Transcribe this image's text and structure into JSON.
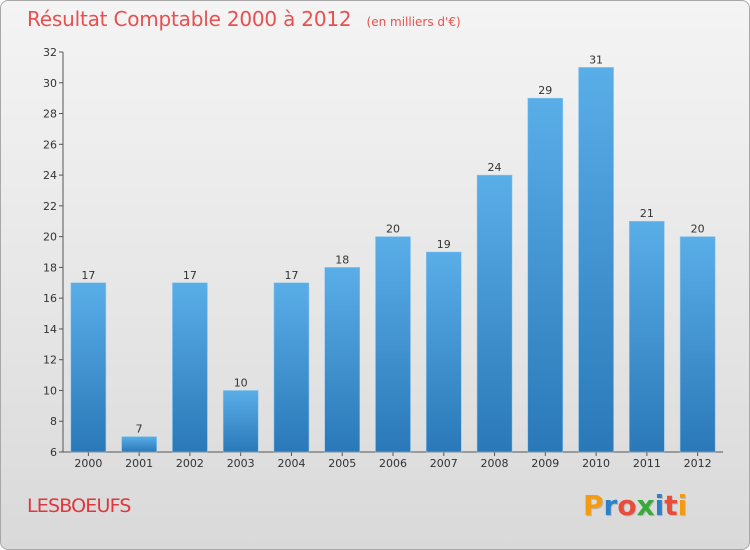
{
  "header": {
    "title": "Résultat Comptable 2000 à 2012",
    "subtitle": "(en milliers d'€)"
  },
  "footer": {
    "commune": "LESBOEUFS",
    "logo_text": "Proxiti",
    "logo_letters": [
      "P",
      "r",
      "o",
      "x",
      "i",
      "t",
      "i"
    ],
    "logo_colors": [
      "#f39c12",
      "#2c7fc9",
      "#e74c3c",
      "#3aa83a",
      "#2c7fc9",
      "#e74c3c",
      "#f39c12"
    ]
  },
  "chart_data": {
    "type": "bar",
    "title": "Résultat Comptable 2000 à 2012",
    "subtitle": "(en milliers d'€)",
    "xlabel": "",
    "ylabel": "",
    "categories": [
      "2000",
      "2001",
      "2002",
      "2003",
      "2004",
      "2005",
      "2006",
      "2007",
      "2008",
      "2009",
      "2010",
      "2011",
      "2012"
    ],
    "values": [
      17,
      7,
      17,
      10,
      17,
      18,
      20,
      19,
      24,
      29,
      31,
      21,
      20
    ],
    "value_labels": [
      "17",
      "7",
      "17",
      "10",
      "17",
      "18",
      "20",
      "19",
      "24",
      "29",
      "31",
      "21",
      "20"
    ],
    "ylim": [
      6,
      32
    ],
    "yticks": [
      6,
      8,
      10,
      12,
      14,
      16,
      18,
      20,
      22,
      24,
      26,
      28,
      30,
      32
    ],
    "ytick_labels": [
      "6",
      "8",
      "10",
      "12",
      "14",
      "16",
      "18",
      "20",
      "22",
      "24",
      "26",
      "28",
      "30",
      "32"
    ],
    "grid": false,
    "bar_color_top": "#5aaee8",
    "bar_color_bottom": "#2a78b8"
  }
}
